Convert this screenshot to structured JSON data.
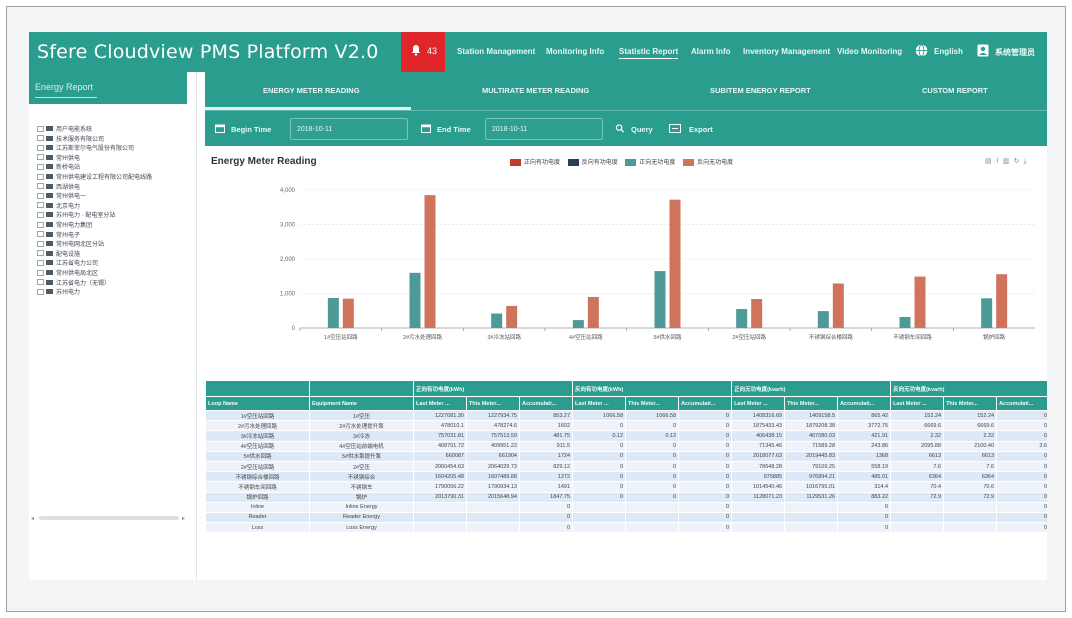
{
  "header": {
    "app_title": "Sfere Cloudview PMS Platform V2.0",
    "alarm_count": "43",
    "nav": [
      {
        "label": "Station Management"
      },
      {
        "label": "Monitoring Info"
      },
      {
        "label": "Statistic Report"
      },
      {
        "label": "Alarm Info"
      },
      {
        "label": "Inventory Management"
      },
      {
        "label": "Video Monitoring"
      }
    ],
    "active_nav": "Statistic Report",
    "language": "English",
    "user_name": "系统管理员"
  },
  "sidebar": {
    "title": "Energy Report",
    "tree": [
      "用户电能系统",
      "技术服务有限公司",
      "江苏斯菲尔电气股份有限公司",
      "常州供电",
      "新桥电站",
      "常州供电建设工程有限公司配电线路",
      "西湖供电",
      "常州供电一",
      "北京电力",
      "苏州电力 · 配电室分站",
      "常州电力集团",
      "常州电子",
      "常州电网北区分站",
      "配电设施",
      "江苏省电力公司",
      "常州供电局北区",
      "江苏省电力（无锡）",
      "苏州电力"
    ]
  },
  "tabs": [
    {
      "label": "ENERGY METER READING"
    },
    {
      "label": "MULTIRATE METER READING"
    },
    {
      "label": "SUBITEM ENERGY REPORT"
    },
    {
      "label": "CUSTOM REPORT"
    }
  ],
  "toolbar": {
    "begin_label": "Begin Time",
    "begin_value": "2018-10-11",
    "end_label": "End Time",
    "end_value": "2018-10-11",
    "query_label": "Query",
    "export_label": "Export"
  },
  "colors": {
    "primary": "#2a9d8f",
    "alarm": "#e0262b",
    "series_red": "#c0392b",
    "series_navy": "#2c3e50",
    "series_teal": "#4e9a97",
    "series_orange": "#d0735c"
  },
  "chart_data": {
    "type": "bar",
    "title": "Energy Meter Reading",
    "categories": [
      "1#空压站回路",
      "2#污水处理回路",
      "3#冷冻站回路",
      "4#空压站回路",
      "5#供水回路",
      "2#空压站回路",
      "不锈钢综合楼回路",
      "不锈钢车间回路",
      "锅炉回路"
    ],
    "series": [
      {
        "name": "正向有功电度",
        "color": "#c0392b",
        "values": [
          0,
          0,
          0,
          0,
          0,
          0,
          0,
          0,
          0
        ]
      },
      {
        "name": "反向有功电度",
        "color": "#2c3e50",
        "values": [
          0,
          0,
          0,
          0,
          0,
          0,
          0,
          0,
          0
        ]
      },
      {
        "name": "正向无功电度",
        "color": "#4e9a97",
        "values": [
          870,
          1600,
          420,
          230,
          1650,
          550,
          490,
          320,
          860
        ]
      },
      {
        "name": "反向无功电度",
        "color": "#d0735c",
        "values": [
          850,
          3850,
          640,
          900,
          3720,
          840,
          1290,
          1490,
          1560
        ]
      }
    ],
    "yticks": [
      "4,000",
      "3,000",
      "2,000",
      "1,000",
      "0"
    ],
    "ylim": [
      0,
      4000
    ],
    "grid": true,
    "legend": "top-center"
  },
  "table": {
    "group_headers": [
      "正向有功电度(kWh)",
      "反向有功电度(kWh)",
      "正向无功电度(kvarh)",
      "反向无功电度(kvarh)"
    ],
    "col_headers": [
      "Loop Name",
      "Equipment Name",
      "Last Meter ...",
      "This Meter...",
      "Accumulati...",
      "Last Meter ...",
      "This Meter...",
      "Accumulati...",
      "Last Meter ...",
      "This Meter...",
      "Accumulati...",
      "Last Meter ...",
      "This Meter...",
      "Accumulati..."
    ],
    "rows": [
      [
        "1#空压站回路",
        "1#空压",
        "1227081.30",
        "1227934.75",
        "853.27",
        "1066.58",
        "1066.58",
        "0",
        "1408316.69",
        "1409158.5",
        "865.42",
        "152.24",
        "152.24",
        "0"
      ],
      [
        "2#污水处理回路",
        "2#污水处理提升泵",
        "478010.1",
        "478274.6",
        "1602",
        "0",
        "0",
        "0",
        "1875433.43",
        "1879208.38",
        "3772.75",
        "6669.6",
        "6669.6",
        "0"
      ],
      [
        "3#冷冻站回路",
        "3#冷冻",
        "757031.81",
        "757513.59",
        "481.75",
        "0.12",
        "0.12",
        "0",
        "406438.15",
        "407080.03",
        "421.91",
        "2.32",
        "2.32",
        "0"
      ],
      [
        "4#空压站回路",
        "4#空压站前端电机",
        "408701.72",
        "409951.22",
        "911.5",
        "0",
        "0",
        "0",
        "71345.46",
        "71589.28",
        "243.86",
        "2095.88",
        "2100.40",
        "3.6"
      ],
      [
        "5#供水回路",
        "5#供水泵提升泵",
        "660087",
        "661904",
        "1724",
        "0",
        "0",
        "0",
        "2018077.63",
        "2019445.83",
        "1368",
        "6613",
        "6613",
        "0"
      ],
      [
        "2#空压站回路",
        "2#空压",
        "2060454.63",
        "2064029.73",
        "829.12",
        "0",
        "0",
        "0",
        "78648.28",
        "79109.25",
        "558.19",
        "7.6",
        "7.6",
        "0"
      ],
      [
        "不锈钢综合楼回路",
        "不锈钢综合",
        "1604205.48",
        "1607489.88",
        "1272",
        "0",
        "0",
        "0",
        "975885",
        "976894.21",
        "485.01",
        "6364",
        "6364",
        "0"
      ],
      [
        "不锈钢车间回路",
        "不锈钢车",
        "1790056.22",
        "1790934.13",
        "1491",
        "0",
        "0",
        "0",
        "1014540.46",
        "1016795.01",
        "314.4",
        "70.4",
        "70.6",
        "0"
      ],
      [
        "锅炉回路",
        "锅炉",
        "2013790.31",
        "2015648.94",
        "1847.75",
        "0",
        "0",
        "0",
        "1128071.23",
        "1129531.26",
        "883.22",
        "72.9",
        "72.9",
        "0"
      ],
      [
        "Inline",
        "Inline Energy",
        "",
        "",
        "0",
        "",
        "",
        "0",
        "",
        "",
        "0",
        "",
        "",
        "0"
      ],
      [
        "Reader",
        "Reader Energy",
        "",
        "",
        "0",
        "",
        "",
        "0",
        "",
        "",
        "0",
        "",
        "",
        "0"
      ],
      [
        "Loss",
        "Loss Energy",
        "",
        "",
        "0",
        "",
        "",
        "0",
        "",
        "",
        "0",
        "",
        "",
        "0"
      ]
    ]
  }
}
